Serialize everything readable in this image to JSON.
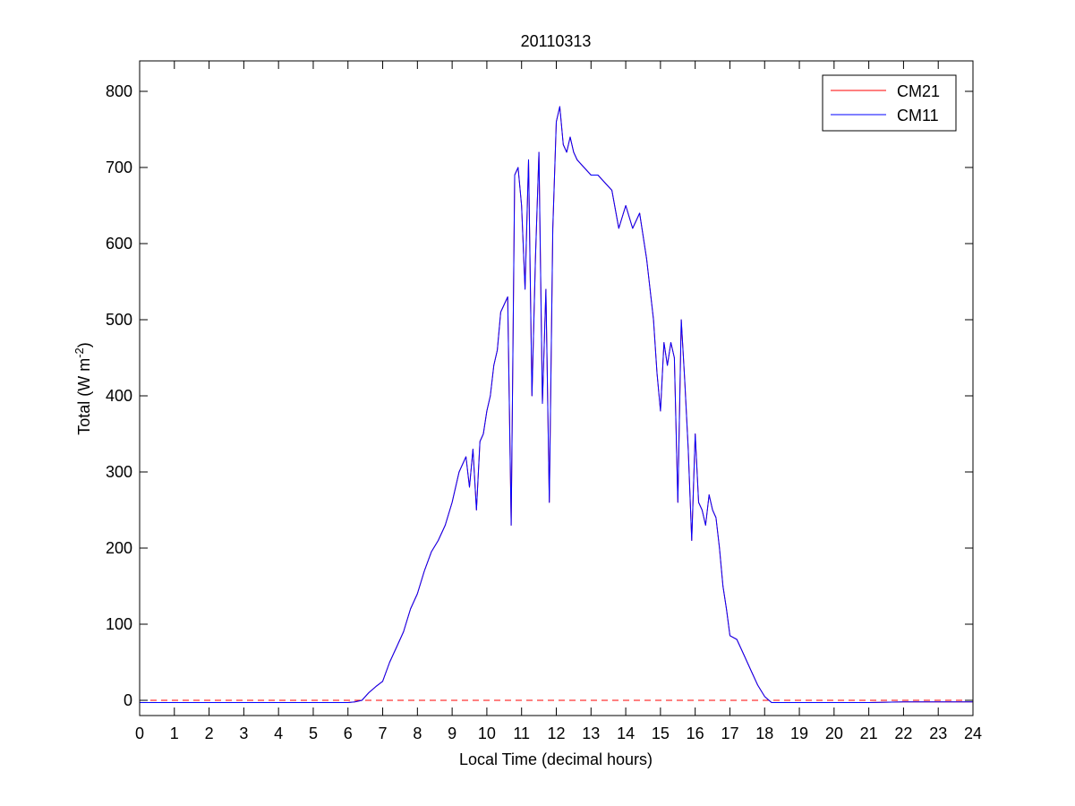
{
  "chart_data": {
    "type": "line",
    "title": "20110313",
    "xlabel": "Local Time (decimal hours)",
    "ylabel": {
      "prefix": "Total (W m",
      "superscript": "-2",
      "suffix": ")"
    },
    "xlim": [
      0,
      24
    ],
    "ylim": [
      -20,
      840
    ],
    "xticks": [
      0,
      1,
      2,
      3,
      4,
      5,
      6,
      7,
      8,
      9,
      10,
      11,
      12,
      13,
      14,
      15,
      16,
      17,
      18,
      19,
      20,
      21,
      22,
      23,
      24
    ],
    "yticks": [
      0,
      100,
      200,
      300,
      400,
      500,
      600,
      700,
      800
    ],
    "grid": false,
    "legend_placement": "top-right",
    "reference_line": {
      "y": 0,
      "color": "#ff0000",
      "style": "dashed"
    },
    "series": [
      {
        "name": "CM21",
        "color": "#ff0000",
        "x": [
          0,
          1,
          2,
          3,
          4,
          5,
          6,
          6.2,
          6.4,
          6.6,
          6.8,
          7,
          7.2,
          7.4,
          7.6,
          7.8,
          8,
          8.2,
          8.4,
          8.6,
          8.8,
          9,
          9.2,
          9.4,
          9.5,
          9.6,
          9.7,
          9.8,
          9.9,
          10,
          10.1,
          10.2,
          10.3,
          10.4,
          10.5,
          10.6,
          10.7,
          10.8,
          10.9,
          11,
          11.1,
          11.2,
          11.3,
          11.4,
          11.5,
          11.6,
          11.7,
          11.8,
          11.9,
          12,
          12.1,
          12.2,
          12.3,
          12.4,
          12.5,
          12.6,
          12.8,
          13,
          13.2,
          13.4,
          13.6,
          13.8,
          14,
          14.2,
          14.4,
          14.6,
          14.8,
          14.9,
          15,
          15.1,
          15.2,
          15.3,
          15.4,
          15.5,
          15.6,
          15.7,
          15.8,
          15.9,
          16,
          16.1,
          16.2,
          16.3,
          16.4,
          16.5,
          16.6,
          16.7,
          16.8,
          16.9,
          17,
          17.2,
          17.4,
          17.6,
          17.8,
          18,
          18.2,
          18.4,
          18.6,
          19,
          20,
          21,
          22,
          23,
          24
        ],
        "y": [
          -3,
          -3,
          -3,
          -3,
          -3,
          -3,
          -3,
          -2,
          0,
          10,
          18,
          25,
          50,
          70,
          90,
          120,
          140,
          170,
          195,
          210,
          230,
          260,
          300,
          320,
          280,
          330,
          250,
          340,
          350,
          380,
          400,
          440,
          460,
          510,
          520,
          530,
          230,
          690,
          700,
          650,
          540,
          710,
          400,
          580,
          720,
          390,
          540,
          260,
          620,
          760,
          780,
          730,
          720,
          740,
          720,
          710,
          700,
          690,
          690,
          680,
          670,
          620,
          650,
          620,
          640,
          580,
          500,
          430,
          380,
          470,
          440,
          470,
          450,
          260,
          500,
          420,
          330,
          210,
          350,
          260,
          250,
          230,
          270,
          250,
          240,
          200,
          150,
          120,
          85,
          80,
          60,
          40,
          20,
          5,
          -3,
          -3,
          -3,
          -3,
          -3,
          -3,
          -2,
          -2,
          -2
        ]
      },
      {
        "name": "CM11",
        "color": "#0000ff",
        "x": [
          0,
          1,
          2,
          3,
          4,
          5,
          6,
          6.2,
          6.4,
          6.6,
          6.8,
          7,
          7.2,
          7.4,
          7.6,
          7.8,
          8,
          8.2,
          8.4,
          8.6,
          8.8,
          9,
          9.2,
          9.4,
          9.5,
          9.6,
          9.7,
          9.8,
          9.9,
          10,
          10.1,
          10.2,
          10.3,
          10.4,
          10.5,
          10.6,
          10.7,
          10.8,
          10.9,
          11,
          11.1,
          11.2,
          11.3,
          11.4,
          11.5,
          11.6,
          11.7,
          11.8,
          11.9,
          12,
          12.1,
          12.2,
          12.3,
          12.4,
          12.5,
          12.6,
          12.8,
          13,
          13.2,
          13.4,
          13.6,
          13.8,
          14,
          14.2,
          14.4,
          14.6,
          14.8,
          14.9,
          15,
          15.1,
          15.2,
          15.3,
          15.4,
          15.5,
          15.6,
          15.7,
          15.8,
          15.9,
          16,
          16.1,
          16.2,
          16.3,
          16.4,
          16.5,
          16.6,
          16.7,
          16.8,
          16.9,
          17,
          17.2,
          17.4,
          17.6,
          17.8,
          18,
          18.2,
          18.4,
          18.6,
          19,
          20,
          21,
          22,
          23,
          24
        ],
        "y": [
          -3,
          -3,
          -3,
          -3,
          -3,
          -3,
          -3,
          -2,
          0,
          10,
          18,
          25,
          50,
          70,
          90,
          120,
          140,
          170,
          195,
          210,
          230,
          260,
          300,
          320,
          280,
          330,
          250,
          340,
          350,
          380,
          400,
          440,
          460,
          510,
          520,
          530,
          230,
          690,
          700,
          650,
          540,
          710,
          400,
          580,
          720,
          390,
          540,
          260,
          620,
          760,
          780,
          730,
          720,
          740,
          720,
          710,
          700,
          690,
          690,
          680,
          670,
          620,
          650,
          620,
          640,
          580,
          500,
          430,
          380,
          470,
          440,
          470,
          450,
          260,
          500,
          420,
          330,
          210,
          350,
          260,
          250,
          230,
          270,
          250,
          240,
          200,
          150,
          120,
          85,
          80,
          60,
          40,
          20,
          5,
          -3,
          -3,
          -3,
          -3,
          -3,
          -3,
          -2,
          -2,
          -2
        ]
      }
    ]
  }
}
